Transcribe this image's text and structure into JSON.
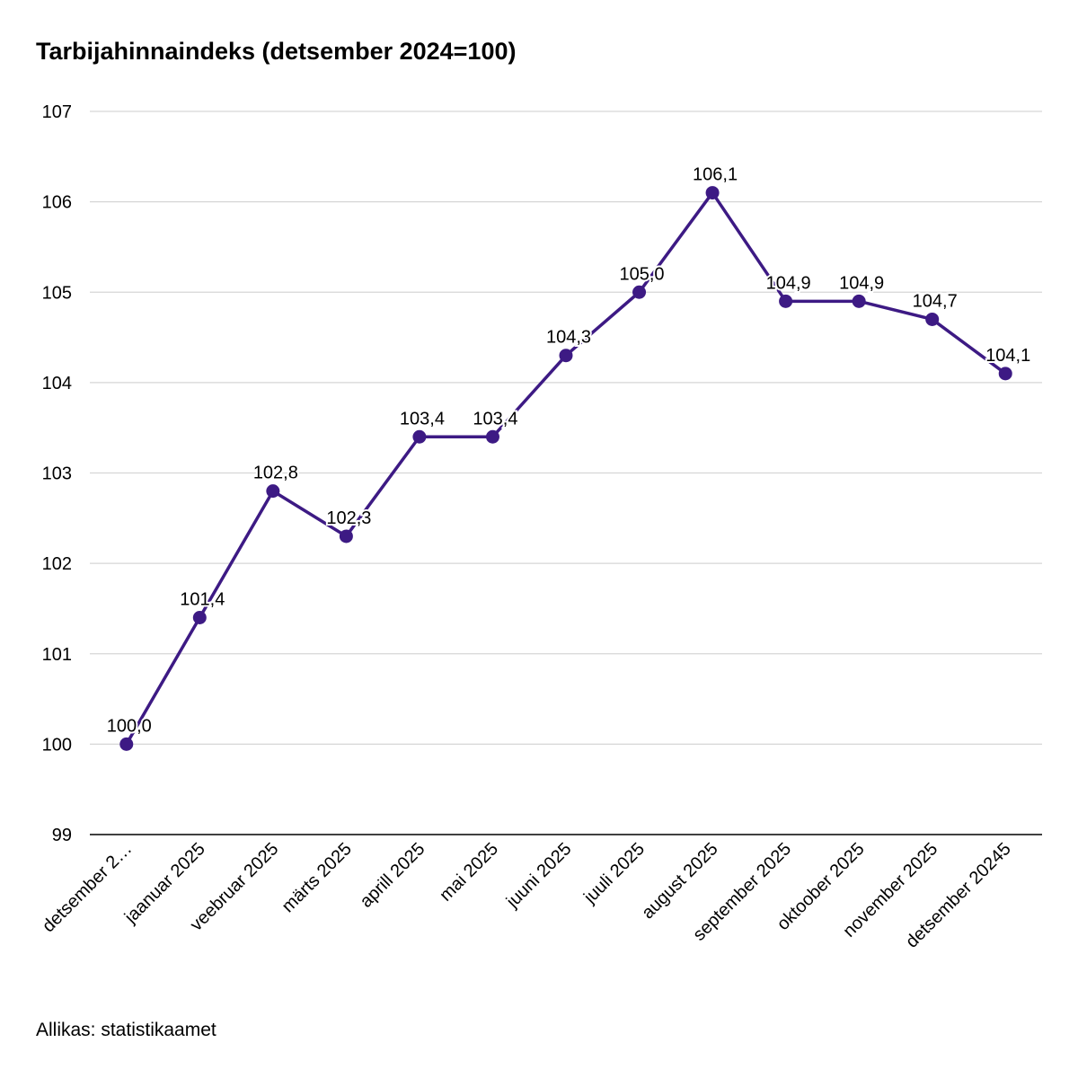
{
  "chart_data": {
    "type": "line",
    "title": "Tarbijahinnaindeks (detsember 2024=100)",
    "source": "Allikas: statistikaamet",
    "categories": [
      "detsember 2…",
      "jaanuar 2025",
      "veebruar 2025",
      "märts 2025",
      "aprill 2025",
      "mai 2025",
      "juuni 2025",
      "juuli 2025",
      "august 2025",
      "september 2025",
      "oktoober 2025",
      "november 2025",
      "detsember 20245"
    ],
    "values": [
      100.0,
      101.4,
      102.8,
      102.3,
      103.4,
      103.4,
      104.3,
      105.0,
      106.1,
      104.9,
      104.9,
      104.7,
      104.1
    ],
    "data_labels": [
      "100,0",
      "101,4",
      "102,8",
      "102,3",
      "103,4",
      "103,4",
      "104,3",
      "105,0",
      "106,1",
      "104,9",
      "104,9",
      "104,7",
      "104,1"
    ],
    "ylim": [
      99,
      107
    ],
    "yticks": [
      "99",
      "100",
      "101",
      "102",
      "103",
      "104",
      "105",
      "106",
      "107"
    ],
    "grid": true,
    "line_color": "#3d1a84"
  }
}
